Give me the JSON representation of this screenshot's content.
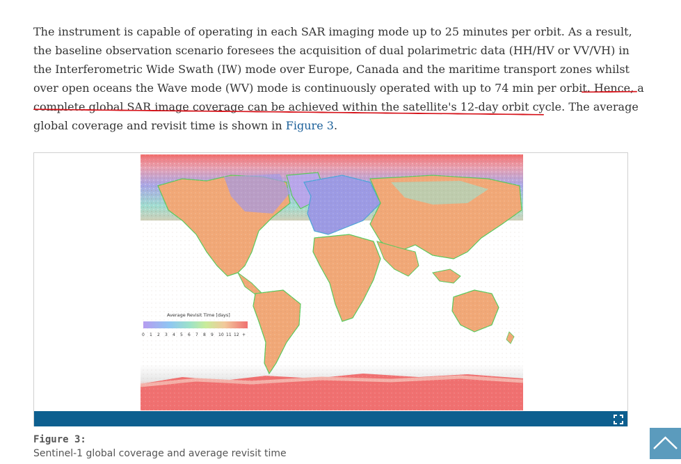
{
  "article": {
    "lines": [
      "The instrument is capable of operating in each SAR imaging mode up to 25 minutes per orbit. As a result,",
      "the baseline observation scenario foresees the acquisition of dual polarimetric data (HH/HV or VV/VH) in",
      "the Interferometric Wide Swath (IW) mode over Europe, Canada and the maritime transport zones whilst",
      "over open oceans the Wave mode (WV) mode is continuously operated with up to 74 min per orbit.",
      "complete global SAR image coverage can be achieved within the satellite's 12-day orbit cycle."
    ],
    "highlight_start": "Hence, a",
    "line5_tail": " The average",
    "line6_prefix": "global coverage and revisit time is shown in ",
    "figure_link": "Figure 3",
    "line6_suffix": ".",
    "annotation_color": "#d6141b",
    "link_color": "#1a5f99"
  },
  "figure": {
    "legend_title": "Average Revisit Time [days]",
    "legend_ticks": [
      "0",
      "1",
      "2",
      "3",
      "4",
      "5",
      "6",
      "7",
      "8",
      "9",
      "10",
      "11",
      "12",
      "+"
    ],
    "caption_title": "Figure 3:",
    "caption_text": "Sentinel-1 global coverage and average revisit time",
    "bar_color": "#0d5f8f",
    "expand_icon": "expand-icon"
  },
  "scroll_top": {
    "icon": "chevron-up-icon",
    "color": "#5b9bbd"
  }
}
